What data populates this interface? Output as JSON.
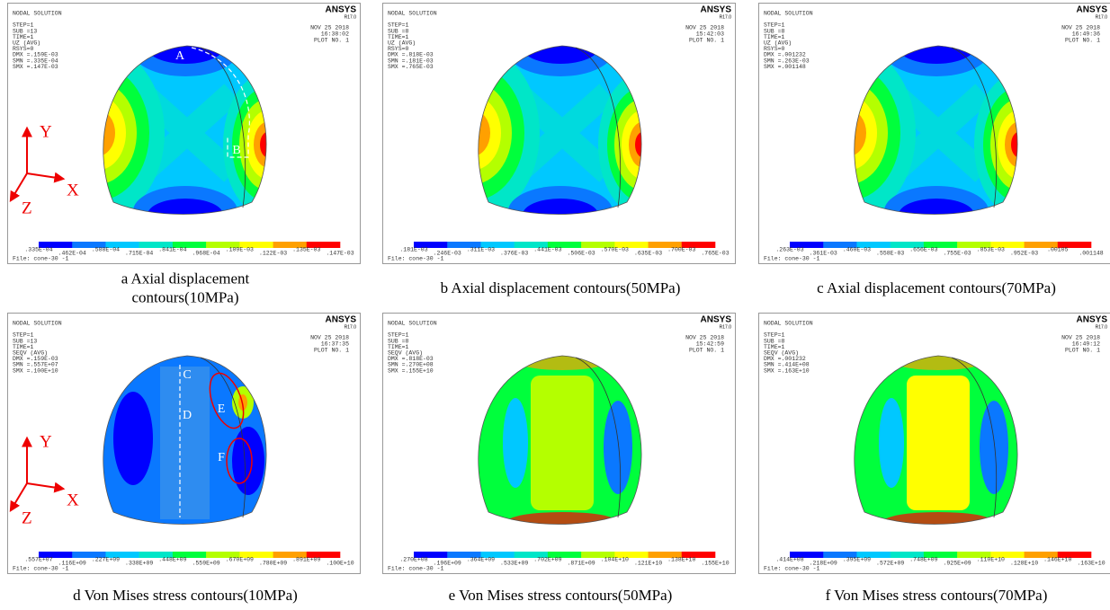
{
  "legend_colors": [
    "#0000ff",
    "#0a78ff",
    "#00c8ff",
    "#00e6c8",
    "#00ff3c",
    "#b4ff00",
    "#ffff00",
    "#ffa000",
    "#ff0000"
  ],
  "panels": [
    {
      "caption": [
        "a Axial displacement",
        "contours(10MPa)"
      ],
      "title": "NODAL SOLUTION",
      "lines": [
        "STEP=1",
        "SUB =13",
        "TIME=1",
        "UZ      (AVG)",
        "RSYS=0",
        "DMX =.159E-03",
        "SMN =.335E-04",
        "SMX =.147E-03"
      ],
      "date": "NOV 25 2018",
      "time": "16:38:02",
      "plot": "PLOT NO.   1",
      "brand": "ANSYS",
      "version": "R17.0",
      "file": "File: cone-30   -1",
      "legend": [
        ".335E-04",
        ".462E-04",
        ".588E-04",
        ".715E-04",
        ".841E-04",
        ".968E-04",
        ".109E-03",
        ".122E-03",
        ".135E-03",
        ".147E-03"
      ],
      "annotations": [
        "A",
        "B"
      ],
      "axes": {
        "y": "Y",
        "x": "X",
        "z": "Z"
      }
    },
    {
      "caption": [
        "b Axial displacement contours(50MPa)"
      ],
      "title": "NODAL SOLUTION",
      "lines": [
        "STEP=1",
        "SUB =8",
        "TIME=1",
        "UZ      (AVG)",
        "RSYS=0",
        "DMX =.818E-03",
        "SMN =.181E-03",
        "SMX =.765E-03"
      ],
      "date": "NOV 25 2018",
      "time": "15:42:03",
      "plot": "PLOT NO.   1",
      "brand": "ANSYS",
      "version": "R17.0",
      "file": "File: cone-30   -1",
      "legend": [
        ".181E-03",
        ".246E-03",
        ".311E-03",
        ".376E-03",
        ".441E-03",
        ".506E-03",
        ".570E-03",
        ".635E-03",
        ".700E-03",
        ".765E-03"
      ]
    },
    {
      "caption": [
        "c Axial displacement contours(70MPa)"
      ],
      "title": "NODAL SOLUTION",
      "lines": [
        "STEP=1",
        "SUB =8",
        "TIME=1",
        "UZ      (AVG)",
        "RSYS=0",
        "DMX =.001232",
        "SMN =.263E-03",
        "SMX =.001148"
      ],
      "date": "NOV 25 2018",
      "time": "16:49:36",
      "plot": "PLOT NO.   1",
      "brand": "ANSYS",
      "version": "R17.0",
      "file": "File: cone-30   -1",
      "legend": [
        ".263E-03",
        ".361E-03",
        ".460E-03",
        ".558E-03",
        ".656E-03",
        ".755E-03",
        ".853E-03",
        ".952E-03",
        ".00105",
        ".001148"
      ]
    },
    {
      "caption": [
        "d Von Mises stress contours(10MPa)"
      ],
      "title": "NODAL SOLUTION",
      "lines": [
        "STEP=1",
        "SUB =13",
        "TIME=1",
        "SEQV    (AVG)",
        "DMX =.159E-03",
        "SMN =.557E+07",
        "SMX =.100E+10"
      ],
      "date": "NOV 25 2018",
      "time": "16:37:35",
      "plot": "PLOT NO.   1",
      "brand": "ANSYS",
      "version": "R17.0",
      "file": "File: cone-30   -1",
      "legend": [
        ".557E+07",
        ".116E+09",
        ".227E+09",
        ".338E+09",
        ".448E+09",
        ".559E+09",
        ".670E+09",
        ".780E+09",
        ".891E+09",
        ".100E+10"
      ],
      "annotations": [
        "C",
        "D",
        "E",
        "F"
      ],
      "axes": {
        "y": "Y",
        "x": "X",
        "z": "Z"
      }
    },
    {
      "caption": [
        "e Von Mises stress contours(50MPa)"
      ],
      "title": "NODAL SOLUTION",
      "lines": [
        "STEP=1",
        "SUB =8",
        "TIME=1",
        "SEQV    (AVG)",
        "DMX =.818E-03",
        "SMN =.270E+08",
        "SMX =.155E+10"
      ],
      "date": "NOV 25 2018",
      "time": "15:42:59",
      "plot": "PLOT NO.   1",
      "brand": "ANSYS",
      "version": "R17.0",
      "file": "File: cone-30   -1",
      "legend": [
        ".270E+08",
        ".196E+09",
        ".364E+09",
        ".533E+09",
        ".702E+09",
        ".871E+09",
        ".104E+10",
        ".121E+10",
        ".138E+10",
        ".155E+10"
      ]
    },
    {
      "caption": [
        "f Von Mises stress contours(70MPa)"
      ],
      "title": "NODAL SOLUTION",
      "lines": [
        "STEP=1",
        "SUB =8",
        "TIME=1",
        "SEQV    (AVG)",
        "DMX =.001232",
        "SMN =.414E+08",
        "SMX =.163E+10"
      ],
      "date": "NOV 25 2018",
      "time": "16:49:12",
      "plot": "PLOT NO.   1",
      "brand": "ANSYS",
      "version": "R17.0",
      "file": "File: cone-30   -1",
      "legend": [
        ".414E+08",
        ".218E+09",
        ".395E+09",
        ".572E+09",
        ".748E+09",
        ".925E+09",
        ".110E+10",
        ".128E+10",
        ".146E+10",
        ".163E+10"
      ]
    }
  ]
}
